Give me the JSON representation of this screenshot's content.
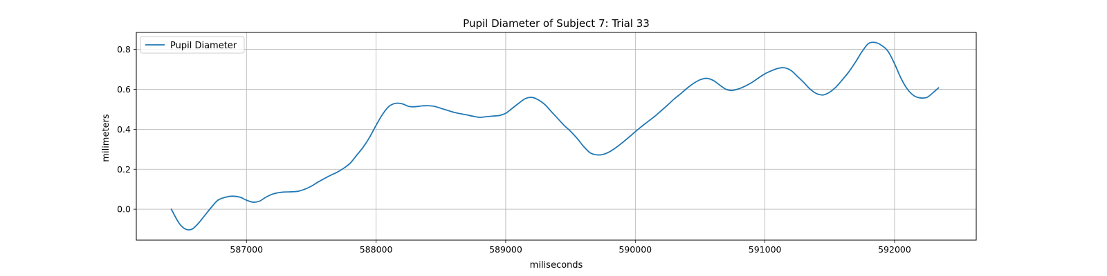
{
  "chart_data": {
    "type": "line",
    "title": "Pupil Diameter of Subject 7: Trial 33",
    "xlabel": "miliseconds",
    "ylabel": "milimeters",
    "xlim": [
      586150,
      592630
    ],
    "ylim": [
      -0.155,
      0.885
    ],
    "xticks": [
      587000,
      588000,
      589000,
      590000,
      591000,
      592000
    ],
    "xtick_labels": [
      "587000",
      "588000",
      "589000",
      "590000",
      "591000",
      "592000"
    ],
    "yticks": [
      0.0,
      0.2,
      0.4,
      0.6,
      0.8
    ],
    "ytick_labels": [
      "0.0",
      "0.2",
      "0.4",
      "0.6",
      "0.8"
    ],
    "grid": true,
    "legend_position": "top-left",
    "colors": {
      "series": "#1f77b4",
      "grid": "#b0b0b0"
    },
    "series": [
      {
        "name": "Pupil Diameter",
        "x": [
          586420,
          586480,
          586530,
          586580,
          586630,
          586680,
          586730,
          586780,
          586840,
          586890,
          586950,
          587000,
          587050,
          587100,
          587150,
          587200,
          587250,
          587300,
          587350,
          587400,
          587450,
          587500,
          587550,
          587600,
          587650,
          587700,
          587750,
          587800,
          587850,
          587900,
          587950,
          588000,
          588050,
          588100,
          588150,
          588200,
          588250,
          588300,
          588350,
          588400,
          588450,
          588500,
          588550,
          588600,
          588650,
          588700,
          588750,
          588800,
          588850,
          588900,
          588950,
          589000,
          589050,
          589100,
          589150,
          589200,
          589250,
          589300,
          589350,
          589400,
          589450,
          589500,
          589550,
          589600,
          589650,
          589700,
          589750,
          589800,
          589850,
          589900,
          589950,
          590000,
          590050,
          590100,
          590150,
          590200,
          590250,
          590300,
          590350,
          590400,
          590450,
          590500,
          590550,
          590600,
          590650,
          590700,
          590750,
          590800,
          590850,
          590900,
          590950,
          591000,
          591050,
          591100,
          591150,
          591200,
          591250,
          591300,
          591350,
          591400,
          591450,
          591500,
          591550,
          591600,
          591650,
          591700,
          591750,
          591800,
          591850,
          591900,
          591950,
          592000,
          592050,
          592100,
          592150,
          592200,
          592250,
          592300,
          592340
        ],
        "y": [
          0.0,
          -0.07,
          -0.1,
          -0.1,
          -0.07,
          -0.03,
          0.01,
          0.045,
          0.06,
          0.065,
          0.06,
          0.045,
          0.035,
          0.04,
          0.06,
          0.075,
          0.083,
          0.086,
          0.087,
          0.09,
          0.1,
          0.115,
          0.135,
          0.153,
          0.17,
          0.185,
          0.205,
          0.23,
          0.27,
          0.31,
          0.36,
          0.42,
          0.475,
          0.515,
          0.53,
          0.528,
          0.515,
          0.513,
          0.517,
          0.518,
          0.515,
          0.505,
          0.495,
          0.485,
          0.478,
          0.472,
          0.465,
          0.46,
          0.463,
          0.466,
          0.469,
          0.48,
          0.505,
          0.53,
          0.553,
          0.56,
          0.548,
          0.525,
          0.49,
          0.455,
          0.42,
          0.39,
          0.355,
          0.315,
          0.283,
          0.272,
          0.274,
          0.287,
          0.308,
          0.333,
          0.36,
          0.388,
          0.415,
          0.44,
          0.465,
          0.493,
          0.522,
          0.552,
          0.578,
          0.606,
          0.63,
          0.648,
          0.655,
          0.645,
          0.622,
          0.6,
          0.595,
          0.603,
          0.617,
          0.635,
          0.657,
          0.678,
          0.693,
          0.705,
          0.708,
          0.695,
          0.665,
          0.634,
          0.6,
          0.578,
          0.572,
          0.586,
          0.613,
          0.65,
          0.69,
          0.738,
          0.79,
          0.83,
          0.835,
          0.82,
          0.79,
          0.728,
          0.655,
          0.6,
          0.568,
          0.557,
          0.56,
          0.585,
          0.608
        ]
      }
    ]
  }
}
